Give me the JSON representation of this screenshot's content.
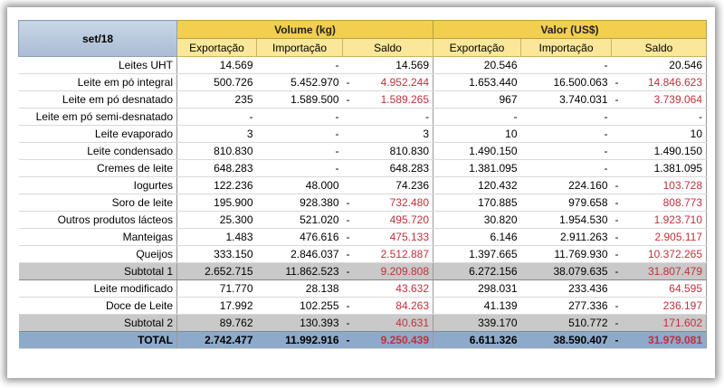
{
  "header": {
    "period": "set/18",
    "groups": [
      {
        "title": "Volume (kg)",
        "columns": [
          "Exportação",
          "Importação",
          "Saldo"
        ]
      },
      {
        "title": "Valor (US$)",
        "columns": [
          "Exportação",
          "Importação",
          "Saldo"
        ]
      }
    ]
  },
  "table": {
    "rows": [
      {
        "label": "Leites UHT",
        "cells": [
          "14.569",
          "-",
          "14.569",
          "20.546",
          "-",
          "20.546"
        ]
      },
      {
        "label": "Leite em pó integral",
        "cells": [
          "500.726",
          "5.452.970",
          {
            "sign": "-",
            "value": "4.952.244",
            "color": "#c0303a"
          },
          "1.653.440",
          "16.500.063",
          {
            "sign": "-",
            "value": "14.846.623",
            "color": "#c0303a"
          }
        ]
      },
      {
        "label": "Leite em pó desnatado",
        "cells": [
          "235",
          "1.589.500",
          {
            "sign": "-",
            "value": "1.589.265",
            "color": "#c0303a"
          },
          "967",
          "3.740.031",
          {
            "sign": "-",
            "value": "3.739.064",
            "color": "#c0303a"
          }
        ]
      },
      {
        "label": "Leite em pó semi-desnatado",
        "cells": [
          "-",
          "-",
          "-",
          "-",
          "-",
          "-"
        ]
      },
      {
        "label": "Leite evaporado",
        "cells": [
          "3",
          "-",
          "3",
          "10",
          "-",
          "10"
        ]
      },
      {
        "label": "Leite condensado",
        "cells": [
          "810.830",
          "-",
          "810.830",
          "1.490.150",
          "-",
          "1.490.150"
        ]
      },
      {
        "label": "Cremes de leite",
        "cells": [
          "648.283",
          "-",
          "648.283",
          "1.381.095",
          "-",
          "1.381.095"
        ]
      },
      {
        "label": "Iogurtes",
        "cells": [
          "122.236",
          "48.000",
          "74.236",
          "120.432",
          "224.160",
          {
            "sign": "-",
            "value": "103.728",
            "color": "#c0303a"
          }
        ]
      },
      {
        "label": "Soro de leite",
        "cells": [
          "195.900",
          "928.380",
          {
            "sign": "-",
            "value": "732.480",
            "color": "#c0303a"
          },
          "170.885",
          "979.658",
          {
            "sign": "-",
            "value": "808.773",
            "color": "#c0303a"
          }
        ]
      },
      {
        "label": "Outros produtos lácteos",
        "cells": [
          "25.300",
          "521.020",
          {
            "sign": "-",
            "value": "495.720",
            "color": "#c0303a"
          },
          "30.820",
          "1.954.530",
          {
            "sign": "-",
            "value": "1.923.710",
            "color": "#c0303a"
          }
        ]
      },
      {
        "label": "Manteigas",
        "cells": [
          "1.483",
          "476.616",
          {
            "sign": "-",
            "value": "475.133",
            "color": "#c0303a"
          },
          "6.146",
          "2.911.263",
          {
            "sign": "-",
            "value": "2.905.117",
            "color": "#c0303a"
          }
        ]
      },
      {
        "label": "Queijos",
        "cells": [
          "333.150",
          "2.846.037",
          {
            "sign": "-",
            "value": "2.512.887",
            "color": "#c0303a"
          },
          "1.397.665",
          "11.769.930",
          {
            "sign": "-",
            "value": "10.372.265",
            "color": "#c0303a"
          }
        ]
      },
      {
        "label": "Subtotal 1",
        "cells": [
          "2.652.715",
          "11.862.523",
          {
            "sign": "-",
            "value": "9.209.808",
            "color": "#c0303a"
          },
          "6.272.156",
          "38.079.635",
          {
            "sign": "-",
            "value": "31.807.479",
            "color": "#c0303a"
          }
        ]
      },
      {
        "label": "Leite modificado",
        "cells": [
          "71.770",
          "28.138",
          {
            "value": "43.632",
            "color": "#c0303a"
          },
          "298.031",
          "233.436",
          {
            "value": "64.595",
            "color": "#c0303a"
          }
        ]
      },
      {
        "label": "Doce de Leite",
        "cells": [
          "17.992",
          "102.255",
          {
            "sign": "-",
            "value": "84.263",
            "color": "#c0303a"
          },
          "41.139",
          "277.336",
          {
            "sign": "-",
            "value": "236.197",
            "color": "#c0303a"
          }
        ]
      },
      {
        "label": "Subtotal 2",
        "cells": [
          "89.762",
          "130.393",
          {
            "sign": "-",
            "value": "40.631",
            "color": "#c0303a"
          },
          "339.170",
          "510.772",
          {
            "sign": "-",
            "value": "171.602",
            "color": "#c0303a"
          }
        ]
      },
      {
        "label": "TOTAL",
        "cells": [
          "2.742.477",
          "11.992.916",
          {
            "sign": "-",
            "value": "9.250.439",
            "color": "#c0303a"
          },
          "6.611.326",
          "38.590.407",
          {
            "sign": "-",
            "value": "31.979.081",
            "color": "#c0303a"
          }
        ]
      }
    ]
  }
}
